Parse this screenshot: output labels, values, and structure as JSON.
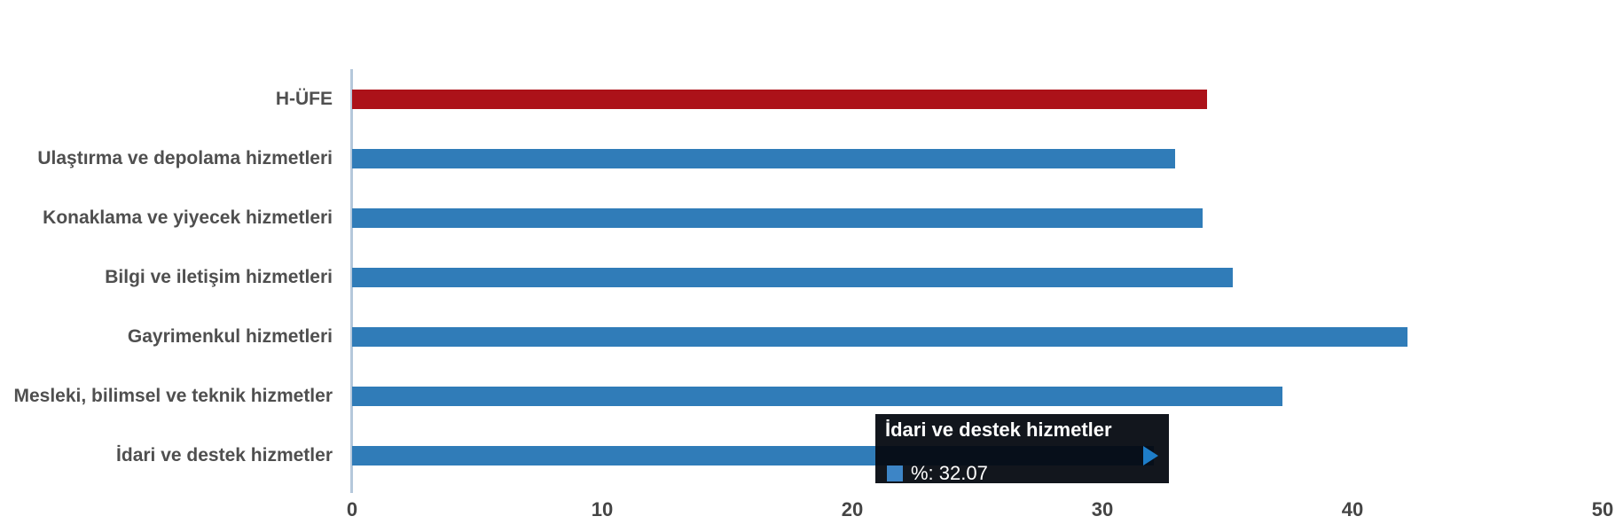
{
  "chart_data": {
    "type": "bar",
    "orientation": "horizontal",
    "title": "",
    "xlabel": "",
    "ylabel": "",
    "series_name": "%",
    "categories": [
      "H-ÜFE",
      "Ulaştırma ve depolama hizmetleri",
      "Konaklama ve yiyecek hizmetleri",
      "Bilgi ve iletişim hizmetleri",
      "Gayrimenkul hizmetleri",
      "Mesleki, bilimsel ve teknik hizmetler",
      "İdari ve destek hizmetler"
    ],
    "values": [
      34.2,
      32.9,
      34.0,
      35.2,
      42.2,
      37.2,
      32.07
    ],
    "bar_colors": [
      "#ac1219",
      "#307cb8",
      "#307cb8",
      "#307cb8",
      "#307cb8",
      "#307cb8",
      "#307cb8"
    ],
    "xlim": [
      0,
      50
    ],
    "x_ticks": [
      "0",
      "10",
      "20",
      "30",
      "40",
      "50"
    ],
    "grid": false,
    "legend": false
  },
  "tooltip": {
    "title": "İdari ve destek hizmetler",
    "series_label": "%",
    "value": "32.07",
    "value_label": "%: 32.07",
    "marker_color": "#3d85c6",
    "target_category_index": 6
  },
  "colors": {
    "accent_blue": "#307cb8",
    "accent_red": "#ac1219",
    "axis_line": "#b5c8db",
    "label_gray": "#4f4f4f",
    "tooltip_bg": "rgba(5,10,17,0.95)",
    "arrow_blue": "#1e7dc8"
  }
}
